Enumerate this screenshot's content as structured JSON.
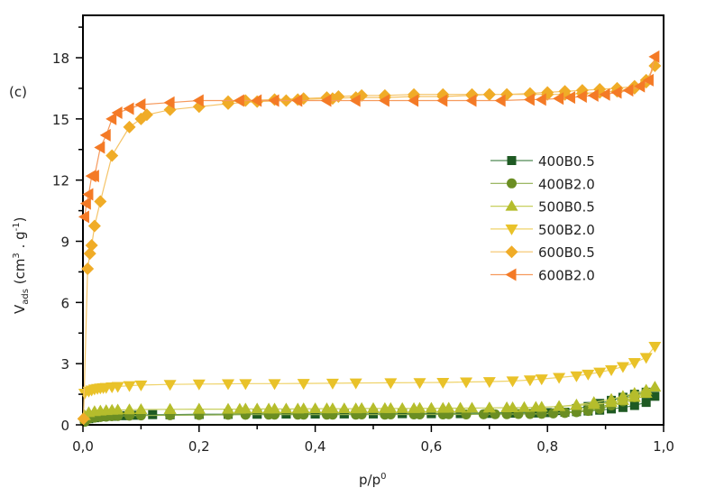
{
  "chart_data": {
    "type": "scatter",
    "title": "",
    "panel_label": "(c)",
    "xlabel": {
      "base": "p/p",
      "sup": "0"
    },
    "ylabel": {
      "base": "V",
      "sub": "ads",
      "rest": " (cm",
      "sup1": "3",
      "mid": " . g",
      "sup2": "-1",
      "end": ")"
    },
    "xlim": [
      0,
      1.0
    ],
    "ylim": [
      0,
      20
    ],
    "x_ticks": [
      0,
      0.2,
      0.4,
      0.6,
      0.8,
      1.0
    ],
    "x_tick_labels": [
      "0,0",
      "0,2",
      "0,4",
      "0,6",
      "0,8",
      "1,0"
    ],
    "x_minor_ticks": [
      0.1,
      0.3,
      0.5,
      0.7,
      0.9
    ],
    "y_ticks": [
      0,
      3,
      6,
      9,
      12,
      15,
      18
    ],
    "y_tick_labels": [
      "0",
      "3",
      "6",
      "9",
      "12",
      "15",
      "18"
    ],
    "y_minor_ticks": [
      1.5,
      4.5,
      7.5,
      10.5,
      13.5,
      16.5,
      19.5
    ],
    "grid": false,
    "legend_position": "center-right",
    "series": [
      {
        "name": "400B0.5",
        "marker": "square",
        "color": "#1f5a23",
        "line_color": "#4f8a55",
        "x": [
          0.003,
          0.01,
          0.02,
          0.03,
          0.05,
          0.07,
          0.09,
          0.12,
          0.15,
          0.2,
          0.25,
          0.3,
          0.35,
          0.4,
          0.45,
          0.5,
          0.55,
          0.6,
          0.65,
          0.7,
          0.74,
          0.78,
          0.8,
          0.83,
          0.85,
          0.87,
          0.89,
          0.91,
          0.93,
          0.95,
          0.97,
          0.985,
          0.97,
          0.95,
          0.93,
          0.91,
          0.89,
          0.87,
          0.85,
          0.82,
          0.78,
          0.74,
          0.7,
          0.65,
          0.6,
          0.55,
          0.5,
          0.45,
          0.4,
          0.35,
          0.3,
          0.25,
          0.2,
          0.15
        ],
        "y": [
          0.2,
          0.3,
          0.35,
          0.4,
          0.42,
          0.45,
          0.47,
          0.5,
          0.5,
          0.52,
          0.52,
          0.53,
          0.53,
          0.54,
          0.54,
          0.54,
          0.55,
          0.55,
          0.55,
          0.56,
          0.57,
          0.58,
          0.6,
          0.62,
          0.65,
          0.68,
          0.72,
          0.78,
          0.85,
          0.95,
          1.1,
          1.4,
          1.6,
          1.5,
          1.35,
          1.2,
          1.05,
          0.9,
          0.8,
          0.7,
          0.64,
          0.6,
          0.58,
          0.56,
          0.55,
          0.55,
          0.54,
          0.54,
          0.53,
          0.53,
          0.52,
          0.52,
          0.51,
          0.5
        ]
      },
      {
        "name": "400B2.0",
        "marker": "circle",
        "color": "#6b8e23",
        "line_color": "#8fae4f",
        "x": [
          0.003,
          0.01,
          0.02,
          0.03,
          0.04,
          0.05,
          0.06,
          0.08,
          0.1,
          0.15,
          0.2,
          0.25,
          0.28,
          0.32,
          0.37,
          0.42,
          0.47,
          0.52,
          0.57,
          0.62,
          0.66,
          0.69,
          0.71,
          0.73,
          0.75,
          0.77,
          0.79,
          0.81,
          0.83,
          0.85,
          0.87,
          0.89,
          0.91,
          0.93,
          0.95,
          0.97,
          0.97,
          0.95,
          0.93,
          0.91,
          0.89,
          0.87,
          0.85,
          0.83,
          0.81,
          0.79,
          0.77,
          0.73,
          0.69,
          0.63,
          0.58,
          0.53,
          0.48,
          0.43,
          0.38,
          0.33,
          0.28
        ],
        "y": [
          0.15,
          0.3,
          0.35,
          0.38,
          0.4,
          0.42,
          0.43,
          0.45,
          0.46,
          0.47,
          0.48,
          0.49,
          0.5,
          0.5,
          0.5,
          0.5,
          0.5,
          0.5,
          0.51,
          0.51,
          0.51,
          0.52,
          0.52,
          0.52,
          0.53,
          0.53,
          0.54,
          0.56,
          0.58,
          0.62,
          0.68,
          0.78,
          0.95,
          1.15,
          1.35,
          1.55,
          1.6,
          1.45,
          1.25,
          1.05,
          0.85,
          0.72,
          0.64,
          0.6,
          0.57,
          0.55,
          0.54,
          0.53,
          0.52,
          0.52,
          0.51,
          0.51,
          0.51,
          0.5,
          0.5,
          0.5,
          0.5
        ]
      },
      {
        "name": "500B0.5",
        "marker": "triangle-up",
        "color": "#b5bd2c",
        "line_color": "#c8cf5e",
        "x": [
          0.003,
          0.01,
          0.02,
          0.03,
          0.04,
          0.05,
          0.06,
          0.08,
          0.1,
          0.15,
          0.2,
          0.27,
          0.28,
          0.32,
          0.33,
          0.37,
          0.38,
          0.42,
          0.43,
          0.47,
          0.48,
          0.52,
          0.53,
          0.57,
          0.58,
          0.62,
          0.63,
          0.67,
          0.7,
          0.73,
          0.76,
          0.79,
          0.82,
          0.85,
          0.88,
          0.91,
          0.93,
          0.95,
          0.97,
          0.985,
          0.97,
          0.95,
          0.93,
          0.91,
          0.88,
          0.85,
          0.82,
          0.78,
          0.74,
          0.7,
          0.65,
          0.6,
          0.55,
          0.5,
          0.45,
          0.4,
          0.35,
          0.3,
          0.25,
          0.2,
          0.15
        ],
        "y": [
          0.45,
          0.6,
          0.65,
          0.68,
          0.7,
          0.72,
          0.73,
          0.74,
          0.75,
          0.76,
          0.77,
          0.77,
          0.78,
          0.78,
          0.78,
          0.78,
          0.79,
          0.79,
          0.79,
          0.79,
          0.8,
          0.8,
          0.8,
          0.8,
          0.81,
          0.81,
          0.82,
          0.82,
          0.83,
          0.84,
          0.85,
          0.87,
          0.9,
          0.95,
          1.0,
          1.1,
          1.2,
          1.35,
          1.55,
          1.85,
          1.7,
          1.55,
          1.4,
          1.25,
          1.1,
          0.98,
          0.9,
          0.86,
          0.84,
          0.83,
          0.82,
          0.81,
          0.8,
          0.8,
          0.79,
          0.79,
          0.78,
          0.78,
          0.77,
          0.77,
          0.76
        ]
      },
      {
        "name": "500B2.0",
        "marker": "triangle-down",
        "color": "#e9c229",
        "line_color": "#efd36a",
        "x": [
          0.003,
          0.01,
          0.015,
          0.02,
          0.025,
          0.03,
          0.035,
          0.04,
          0.05,
          0.06,
          0.08,
          0.1,
          0.15,
          0.2,
          0.25,
          0.28,
          0.33,
          0.38,
          0.43,
          0.47,
          0.53,
          0.58,
          0.62,
          0.66,
          0.7,
          0.74,
          0.77,
          0.79,
          0.82,
          0.85,
          0.87,
          0.89,
          0.91,
          0.93,
          0.95,
          0.97,
          0.985
        ],
        "y": [
          1.55,
          1.65,
          1.7,
          1.75,
          1.78,
          1.8,
          1.82,
          1.83,
          1.86,
          1.88,
          1.92,
          1.95,
          1.98,
          2.0,
          2.01,
          2.02,
          2.02,
          2.03,
          2.04,
          2.05,
          2.06,
          2.07,
          2.08,
          2.1,
          2.12,
          2.15,
          2.2,
          2.25,
          2.32,
          2.4,
          2.48,
          2.58,
          2.7,
          2.85,
          3.05,
          3.3,
          3.85
        ]
      },
      {
        "name": "600B0.5",
        "marker": "diamond",
        "color": "#f0ac27",
        "line_color": "#f5c468",
        "x": [
          0.001,
          0.008,
          0.012,
          0.015,
          0.02,
          0.03,
          0.05,
          0.08,
          0.1,
          0.11,
          0.15,
          0.2,
          0.25,
          0.3,
          0.35,
          0.37,
          0.43,
          0.47,
          0.52,
          0.57,
          0.62,
          0.67,
          0.7,
          0.73,
          0.77,
          0.8,
          0.83,
          0.86,
          0.89,
          0.92,
          0.95,
          0.97,
          0.985,
          0.97,
          0.95,
          0.92,
          0.89,
          0.86,
          0.83,
          0.8,
          0.77,
          0.73,
          0.7,
          0.67,
          0.62,
          0.57,
          0.52,
          0.48,
          0.44,
          0.42,
          0.38,
          0.33,
          0.28,
          0.25
        ],
        "y": [
          0.3,
          7.65,
          8.4,
          8.8,
          9.75,
          10.95,
          13.2,
          14.6,
          15.0,
          15.2,
          15.45,
          15.6,
          15.75,
          15.85,
          15.9,
          15.95,
          16.0,
          16.05,
          16.05,
          16.1,
          16.1,
          16.15,
          16.2,
          16.2,
          16.25,
          16.3,
          16.35,
          16.4,
          16.45,
          16.5,
          16.6,
          16.8,
          17.6,
          16.9,
          16.5,
          16.35,
          16.3,
          16.25,
          16.2,
          16.2,
          16.2,
          16.2,
          16.2,
          16.2,
          16.2,
          16.2,
          16.15,
          16.15,
          16.1,
          16.05,
          16.0,
          15.95,
          15.9,
          15.85
        ]
      },
      {
        "name": "600B2.0",
        "marker": "triangle-left",
        "color": "#f47a26",
        "line_color": "#f69a5d",
        "x": [
          0.003,
          0.006,
          0.01,
          0.015,
          0.02,
          0.03,
          0.04,
          0.05,
          0.06,
          0.08,
          0.1,
          0.15,
          0.2,
          0.27,
          0.3,
          0.33,
          0.37,
          0.42,
          0.47,
          0.52,
          0.57,
          0.62,
          0.67,
          0.72,
          0.77,
          0.79,
          0.82,
          0.84,
          0.86,
          0.88,
          0.9,
          0.92,
          0.94,
          0.96,
          0.975,
          0.985
        ],
        "y": [
          10.2,
          10.85,
          11.3,
          12.2,
          12.2,
          13.6,
          14.2,
          15.0,
          15.3,
          15.5,
          15.7,
          15.8,
          15.9,
          15.9,
          15.9,
          15.9,
          15.9,
          15.9,
          15.9,
          15.9,
          15.9,
          15.9,
          15.9,
          15.9,
          15.95,
          15.95,
          16.0,
          16.05,
          16.1,
          16.15,
          16.2,
          16.3,
          16.4,
          16.6,
          16.9,
          18.05
        ]
      }
    ]
  }
}
